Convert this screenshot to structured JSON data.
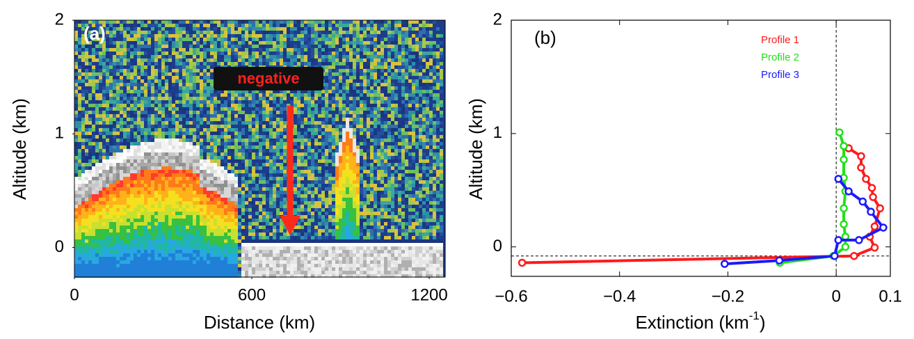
{
  "chart_data": [
    {
      "type": "heatmap",
      "panel_label": "(a)",
      "annotation": "negative",
      "xlabel": "Distance (km)",
      "ylabel": "Altitude (km)",
      "xlim": [
        0,
        1254
      ],
      "ylim": [
        -0.26,
        2
      ],
      "xticks": [
        0,
        600,
        1200
      ],
      "yticks": [
        0,
        1,
        2
      ]
    },
    {
      "type": "line",
      "panel_label": "(b)",
      "xlabel": "Extinction (km",
      "xlabel_superscript": "-1",
      "xlabel_suffix": ")",
      "ylabel": "Altitude (km)",
      "xlim": [
        -0.6,
        0.1
      ],
      "ylim": [
        -0.26,
        2
      ],
      "xticks": [
        {
          "value": -0.6,
          "label": "−0.6"
        },
        {
          "value": -0.4,
          "label": "−0.4"
        },
        {
          "value": -0.2,
          "label": "−0.2"
        },
        0,
        0.1
      ],
      "yticks": [
        0,
        1,
        2
      ],
      "reference_x": 0,
      "reference_y": -0.08,
      "series": [
        {
          "name": "Profile 1",
          "color": "#ff1a1a",
          "x": [
            -0.58,
            0.033,
            0.071,
            0.062,
            0.071,
            0.081,
            0.068,
            0.066,
            0.055,
            0.046,
            0.046,
            0.023
          ],
          "values": [
            -0.14,
            -0.08,
            -0.006,
            0.09,
            0.18,
            0.34,
            0.44,
            0.52,
            0.6,
            0.7,
            0.8,
            0.87
          ]
        },
        {
          "name": "Profile 2",
          "color": "#22e01a",
          "x": [
            -0.104,
            -0.005,
            0.017,
            0.017,
            0.014,
            0.014,
            0.017,
            0.014,
            0.014,
            0.014,
            0.006
          ],
          "values": [
            -0.14,
            -0.08,
            0,
            0.09,
            0.2,
            0.34,
            0.49,
            0.61,
            0.77,
            0.89,
            1.01
          ]
        },
        {
          "name": "Profile 3",
          "color": "#1a1aff",
          "x": [
            -0.206,
            -0.105,
            -0.003,
            0.004,
            0.042,
            0.087,
            0.064,
            0.049,
            0.023,
            0.004
          ],
          "values": [
            -0.15,
            -0.12,
            -0.08,
            0.06,
            0.06,
            0.17,
            0.31,
            0.4,
            0.49,
            0.6
          ]
        }
      ]
    }
  ]
}
